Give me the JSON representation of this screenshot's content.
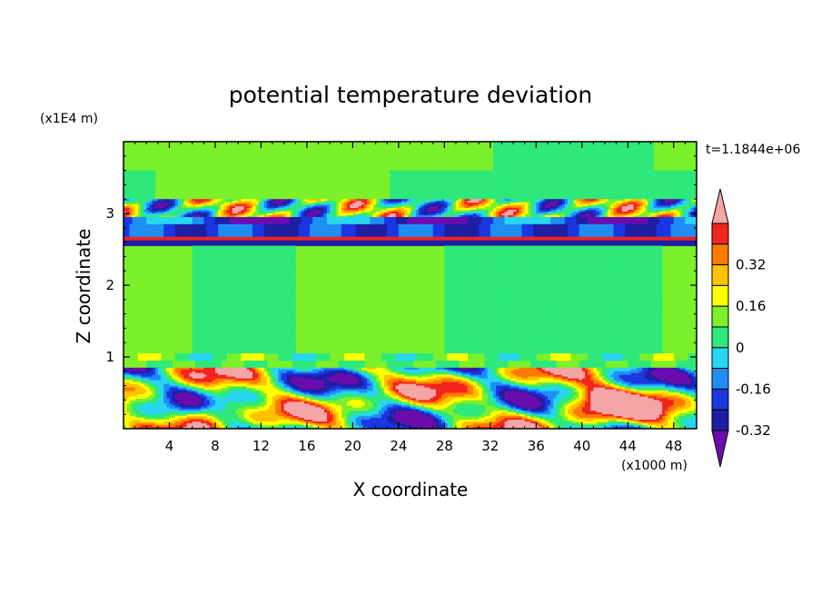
{
  "chart_data": {
    "type": "heatmap",
    "title": "potential temperature deviation",
    "xlabel": "X coordinate",
    "ylabel": "Z coordinate",
    "x_scale_label": "(x1000 m)",
    "y_scale_label": "(x1E4 m)",
    "time_label": "t=1.1844e+06",
    "xlim": [
      0,
      50
    ],
    "ylim": [
      0,
      4
    ],
    "x_ticks": [
      4,
      8,
      12,
      16,
      20,
      24,
      28,
      32,
      36,
      40,
      44,
      48
    ],
    "y_ticks": [
      1,
      2,
      3
    ],
    "colorbar": {
      "levels": [
        -0.4,
        -0.32,
        -0.24,
        -0.16,
        -0.08,
        0,
        0.08,
        0.16,
        0.24,
        0.32,
        0.4
      ],
      "colors": [
        "#6a0dad",
        "#1f1fa3",
        "#1a37e0",
        "#1f8ef5",
        "#28d6f2",
        "#2ee87a",
        "#7cf02a",
        "#ffff00",
        "#ffc200",
        "#ff7a00",
        "#f2241f",
        "#f4a5a5"
      ],
      "tick_labels": [
        "0.32",
        "0.16",
        "0",
        "-0.16",
        "-0.32"
      ],
      "extend": "both"
    }
  }
}
